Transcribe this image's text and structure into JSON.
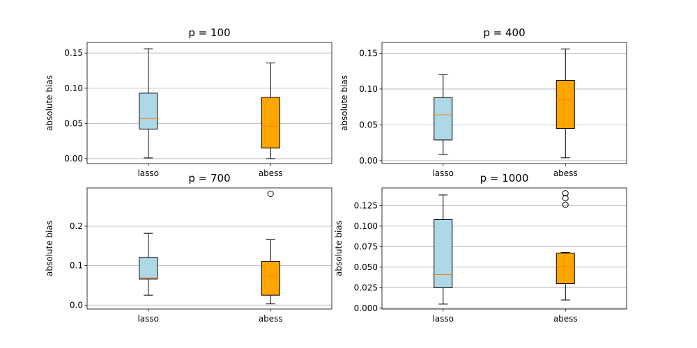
{
  "figure": {
    "background": "#ffffff",
    "grid_color": "#b0b0b0",
    "median_color": "#ff7f0e",
    "box_edge_color": "#000000"
  },
  "chart_data": [
    {
      "type": "box",
      "title": "p = 100",
      "xlabel": "",
      "ylabel": "absolute bias",
      "categories": [
        "lasso",
        "abess"
      ],
      "box_colors": [
        "#add8e6",
        "#ffa500"
      ],
      "ylim": [
        -0.007,
        0.165
      ],
      "yticks": [
        0.0,
        0.05,
        0.1,
        0.15
      ],
      "ytick_labels": [
        "0.00",
        "0.05",
        "0.10",
        "0.15"
      ],
      "grid": "y",
      "boxes": [
        {
          "name": "lasso",
          "whisker_low": 0.001,
          "q1": 0.042,
          "median": 0.057,
          "q3": 0.093,
          "whisker_high": 0.156,
          "outliers": []
        },
        {
          "name": "abess",
          "whisker_low": 0.0,
          "q1": 0.015,
          "median": 0.046,
          "q3": 0.087,
          "whisker_high": 0.136,
          "outliers": []
        }
      ]
    },
    {
      "type": "box",
      "title": "p = 400",
      "xlabel": "",
      "ylabel": "absolute bias",
      "categories": [
        "lasso",
        "abess"
      ],
      "box_colors": [
        "#add8e6",
        "#ffa500"
      ],
      "ylim": [
        -0.004,
        0.165
      ],
      "yticks": [
        0.0,
        0.05,
        0.1,
        0.15
      ],
      "ytick_labels": [
        "0.00",
        "0.05",
        "0.10",
        "0.15"
      ],
      "grid": "y",
      "boxes": [
        {
          "name": "lasso",
          "whisker_low": 0.009,
          "q1": 0.029,
          "median": 0.064,
          "q3": 0.088,
          "whisker_high": 0.12,
          "outliers": []
        },
        {
          "name": "abess",
          "whisker_low": 0.004,
          "q1": 0.045,
          "median": 0.085,
          "q3": 0.112,
          "whisker_high": 0.156,
          "outliers": []
        }
      ]
    },
    {
      "type": "box",
      "title": "p = 700",
      "xlabel": "",
      "ylabel": "absolute bias",
      "categories": [
        "lasso",
        "abess"
      ],
      "box_colors": [
        "#add8e6",
        "#ffa500"
      ],
      "ylim": [
        -0.01,
        0.297
      ],
      "yticks": [
        0.0,
        0.1,
        0.2
      ],
      "ytick_labels": [
        "0.0",
        "0.1",
        "0.2"
      ],
      "grid": "y",
      "boxes": [
        {
          "name": "lasso",
          "whisker_low": 0.025,
          "q1": 0.066,
          "median": 0.069,
          "q3": 0.121,
          "whisker_high": 0.182,
          "outliers": []
        },
        {
          "name": "abess",
          "whisker_low": 0.003,
          "q1": 0.025,
          "median": 0.074,
          "q3": 0.111,
          "whisker_high": 0.166,
          "outliers": [
            0.282
          ]
        }
      ]
    },
    {
      "type": "box",
      "title": "p = 1000",
      "xlabel": "",
      "ylabel": "absolute bias",
      "categories": [
        "lasso",
        "abess"
      ],
      "box_colors": [
        "#add8e6",
        "#ffa500"
      ],
      "ylim": [
        -0.001,
        0.1465
      ],
      "yticks": [
        0.0,
        0.025,
        0.05,
        0.075,
        0.1,
        0.125
      ],
      "ytick_labels": [
        "0.000",
        "0.025",
        "0.050",
        "0.075",
        "0.100",
        "0.125"
      ],
      "grid": "y",
      "boxes": [
        {
          "name": "lasso",
          "whisker_low": 0.005,
          "q1": 0.025,
          "median": 0.041,
          "q3": 0.108,
          "whisker_high": 0.138,
          "outliers": []
        },
        {
          "name": "abess",
          "whisker_low": 0.01,
          "q1": 0.03,
          "median": 0.051,
          "q3": 0.067,
          "whisker_high": 0.068,
          "outliers": [
            0.126,
            0.134,
            0.14
          ]
        }
      ]
    }
  ]
}
